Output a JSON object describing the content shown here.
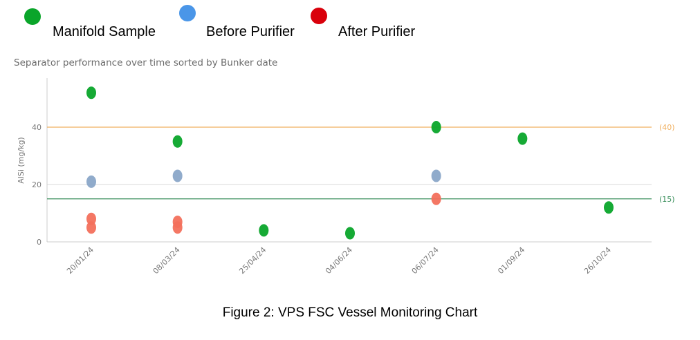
{
  "legend": [
    {
      "label": "Manifold Sample",
      "color": "#0aa52a"
    },
    {
      "label": "Before Purifier",
      "color": "#4a96e8"
    },
    {
      "label": "After Purifier",
      "color": "#d9000b"
    }
  ],
  "caption": "Figure 2: VPS FSC Vessel Monitoring Chart",
  "chart_data": {
    "type": "scatter",
    "title": "Separator performance over time sorted by Bunker date",
    "ylabel": "AlSi (mg/kg)",
    "xlabel": "",
    "categories": [
      "20/01/24",
      "08/03/24",
      "25/04/24",
      "04/06/24",
      "06/07/24",
      "01/09/24",
      "26/10/24"
    ],
    "ylim": [
      0,
      56
    ],
    "yticks": [
      0,
      20,
      40
    ],
    "grid": true,
    "series": [
      {
        "name": "Manifold Sample",
        "color": "#0aa52a",
        "points": [
          {
            "x": "20/01/24",
            "y": 52
          },
          {
            "x": "08/03/24",
            "y": 35
          },
          {
            "x": "25/04/24",
            "y": 4
          },
          {
            "x": "04/06/24",
            "y": 3
          },
          {
            "x": "06/07/24",
            "y": 40
          },
          {
            "x": "01/09/24",
            "y": 36
          },
          {
            "x": "26/10/24",
            "y": 12
          }
        ]
      },
      {
        "name": "Before Purifier",
        "color": "#8aa6c8",
        "points": [
          {
            "x": "20/01/24",
            "y": 21
          },
          {
            "x": "08/03/24",
            "y": 23
          },
          {
            "x": "06/07/24",
            "y": 23
          }
        ]
      },
      {
        "name": "After Purifier",
        "color": "#f3705c",
        "points": [
          {
            "x": "20/01/24",
            "y": 8
          },
          {
            "x": "20/01/24",
            "y": 5
          },
          {
            "x": "08/03/24",
            "y": 7
          },
          {
            "x": "08/03/24",
            "y": 5
          },
          {
            "x": "06/07/24",
            "y": 15
          }
        ]
      }
    ],
    "reference_lines": [
      {
        "value": 40,
        "label": "(40)",
        "color": "#f0b060"
      },
      {
        "value": 15,
        "label": "(15)",
        "color": "#3a8f5c"
      }
    ]
  }
}
